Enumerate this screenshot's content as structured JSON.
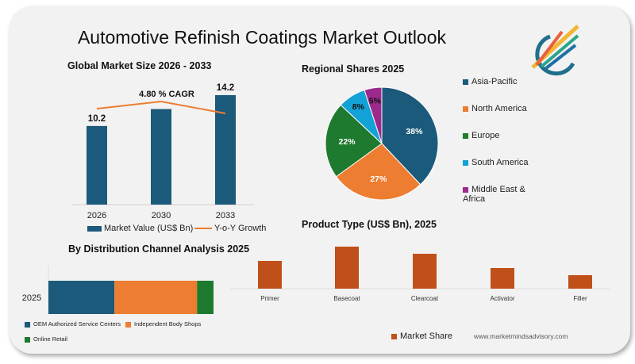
{
  "title": "Automotive Refinish Coatings Market Outlook",
  "footer_url": "www.marketmindsadvisory.com",
  "logo": {
    "icon": "growth-arrows-logo"
  },
  "chart_data": [
    {
      "type": "bar",
      "title": "Global Market Size 2026 - 2033",
      "categories": [
        "2026",
        "2030",
        "2033"
      ],
      "series": [
        {
          "name": "Market Value (US$ Bn)",
          "values": [
            10.2,
            12.4,
            14.2
          ],
          "labels": [
            "10.2",
            "",
            "14.2"
          ],
          "color": "#1b5a7a"
        },
        {
          "name": "Y-o-Y Growth",
          "type": "line",
          "values": [
            4.6,
            4.9,
            4.4
          ],
          "color": "#ed7d31"
        }
      ],
      "annotation": "4.80  % CAGR",
      "ylim": [
        0,
        16
      ],
      "legend": "bottom"
    },
    {
      "type": "pie",
      "title": "Regional Shares 2025",
      "categories": [
        "Asia-Pacific",
        "North America",
        "Europe",
        "South America",
        "Middle East & Africa"
      ],
      "values": [
        38,
        27,
        22,
        8,
        5
      ],
      "labels": [
        "38%",
        "27%",
        "22%",
        "8%",
        "5%"
      ],
      "colors": [
        "#1b5a7a",
        "#ed7d31",
        "#1e7a2e",
        "#13a2d6",
        "#9c2a8c"
      ],
      "legend": "right"
    },
    {
      "type": "bar",
      "orientation": "horizontal-stacked",
      "title": "By  Distribution Channel Analysis 2025",
      "categories": [
        "2025"
      ],
      "series": [
        {
          "name": "OEM Authorized Service Centers",
          "values": [
            40
          ],
          "color": "#1b5a7a"
        },
        {
          "name": "Independent Body Shops",
          "values": [
            50
          ],
          "color": "#ed7d31"
        },
        {
          "name": "Online Retail",
          "values": [
            10
          ],
          "color": "#1e7a2e"
        }
      ],
      "legend": "bottom"
    },
    {
      "type": "bar",
      "title": "Product Type (US$ Bn), 2025",
      "categories": [
        "Primer",
        "Basecoat",
        "Clearcoat",
        "Activator",
        "Filler"
      ],
      "series": [
        {
          "name": "Market Share",
          "values": [
            3.5,
            5.3,
            4.4,
            2.6,
            1.7
          ],
          "color": "#c0501a"
        }
      ],
      "legend": "bottom"
    }
  ]
}
